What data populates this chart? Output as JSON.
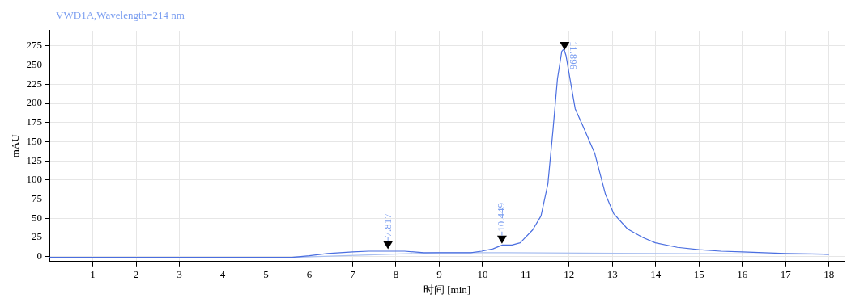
{
  "chart_data": {
    "type": "line",
    "title": "VWD1A,Wavelength=214 nm",
    "xlabel": "时间 [min]",
    "ylabel": "mAU",
    "xlim": [
      0,
      18.36
    ],
    "xticks": [
      1,
      2,
      3,
      4,
      5,
      6,
      7,
      8,
      9,
      10,
      11,
      12,
      13,
      14,
      15,
      16,
      17,
      18
    ],
    "ylim": [
      -6.5,
      295
    ],
    "yticks": [
      0,
      25,
      50,
      75,
      100,
      125,
      150,
      175,
      200,
      225,
      250,
      275
    ],
    "grid": true,
    "legend": false,
    "marker": "none",
    "line_style": "solid",
    "series": [
      {
        "color": "#4a6ee0",
        "x": [
          0,
          5.15,
          5.6,
          6.0,
          6.42,
          7.0,
          7.37,
          7.8,
          8.2,
          8.65,
          9.2,
          9.73,
          9.98,
          10.24,
          10.46,
          10.68,
          10.87,
          11.16,
          11.35,
          11.51,
          11.63,
          11.73,
          11.83,
          11.88,
          11.93,
          12.02,
          12.14,
          12.33,
          12.59,
          12.84,
          13.03,
          13.35,
          13.7,
          13.99,
          14.5,
          15.0,
          15.5,
          16.0,
          17.0,
          18.0
        ],
        "values": [
          -1,
          -1,
          -1,
          1,
          4,
          6,
          7,
          7,
          7,
          5,
          5,
          5,
          7,
          10,
          15,
          15,
          18,
          35,
          53,
          95,
          167,
          232,
          268,
          271,
          262,
          232,
          193,
          169,
          135,
          81,
          56,
          36,
          25,
          18,
          12,
          9,
          7,
          6,
          4,
          3
        ]
      },
      {
        "color": "#a9bff0",
        "x": [
          5.6,
          9.0,
          10.6,
          14.0,
          18.0
        ],
        "values": [
          -1,
          5,
          5,
          4,
          3
        ]
      }
    ],
    "annotations": [
      {
        "text": "7.817",
        "x": 7.817,
        "y": 15
      },
      {
        "text": "10.449",
        "x": 10.449,
        "y": 22
      },
      {
        "text": "11.896",
        "x": 11.896,
        "y": 275
      }
    ]
  }
}
